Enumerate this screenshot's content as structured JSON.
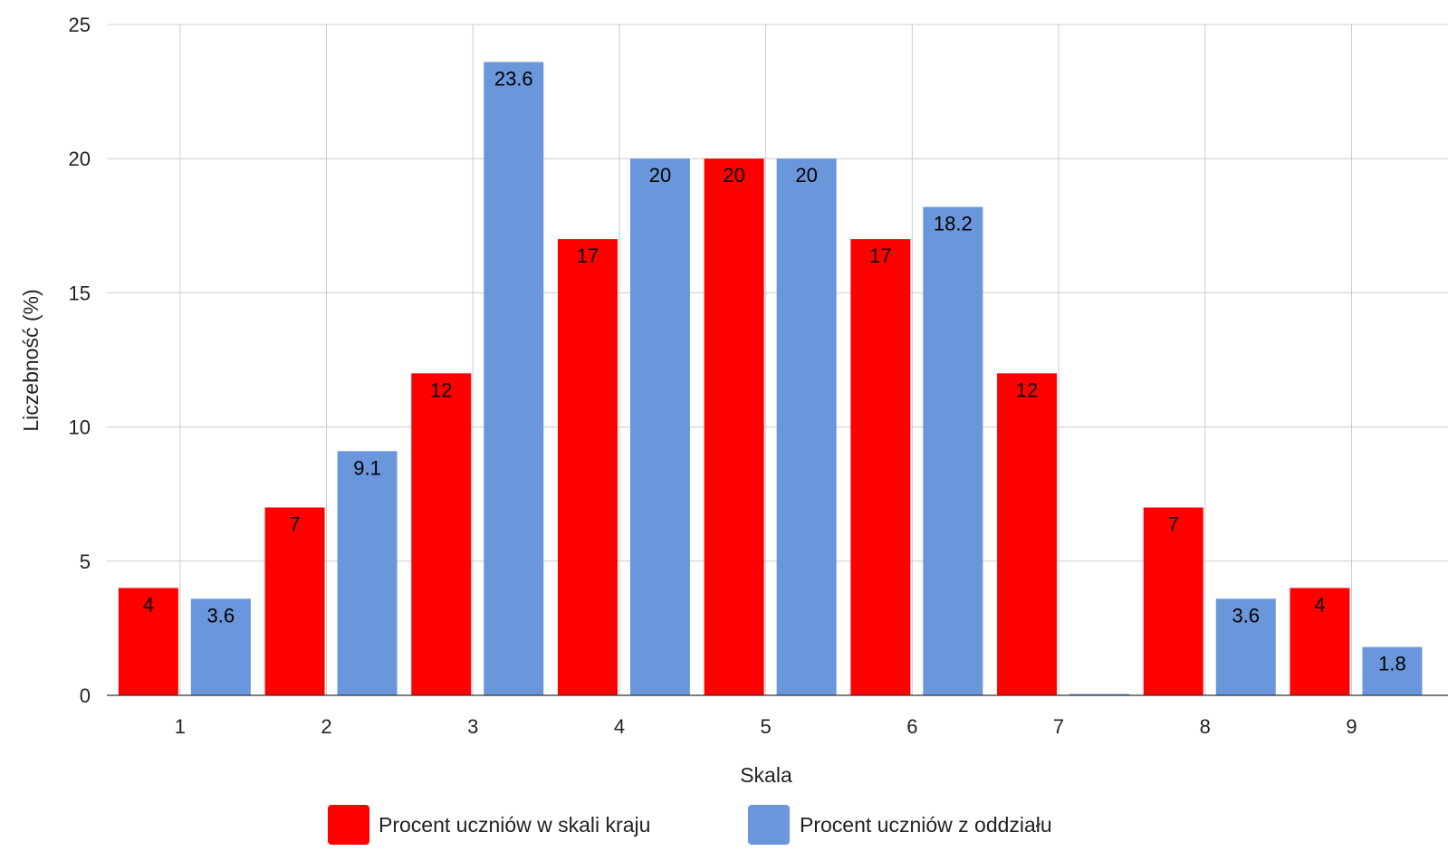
{
  "chart_data": {
    "type": "bar",
    "categories": [
      "1",
      "2",
      "3",
      "4",
      "5",
      "6",
      "7",
      "8",
      "9"
    ],
    "series": [
      {
        "name": "Procent uczniów w skali kraju",
        "color": "#ff0000",
        "values": [
          4,
          7,
          12,
          17,
          20,
          17,
          12,
          7,
          4
        ]
      },
      {
        "name": "Procent uczniów z oddziału",
        "color": "#6a96dc",
        "values": [
          3.6,
          9.1,
          23.6,
          20,
          20,
          18.2,
          0,
          3.6,
          1.8
        ],
        "value_labels": [
          "3.6",
          "9.1",
          "23.6",
          "20",
          "20",
          "18.2",
          "",
          "3.6",
          "1.8"
        ]
      }
    ],
    "title": "",
    "xlabel": "Skala",
    "ylabel": "Liczebność (%)",
    "ylim": [
      0,
      25
    ],
    "yticks": [
      "0",
      "5",
      "10",
      "15",
      "20",
      "25"
    ],
    "grid": true,
    "legend_position": "bottom"
  }
}
